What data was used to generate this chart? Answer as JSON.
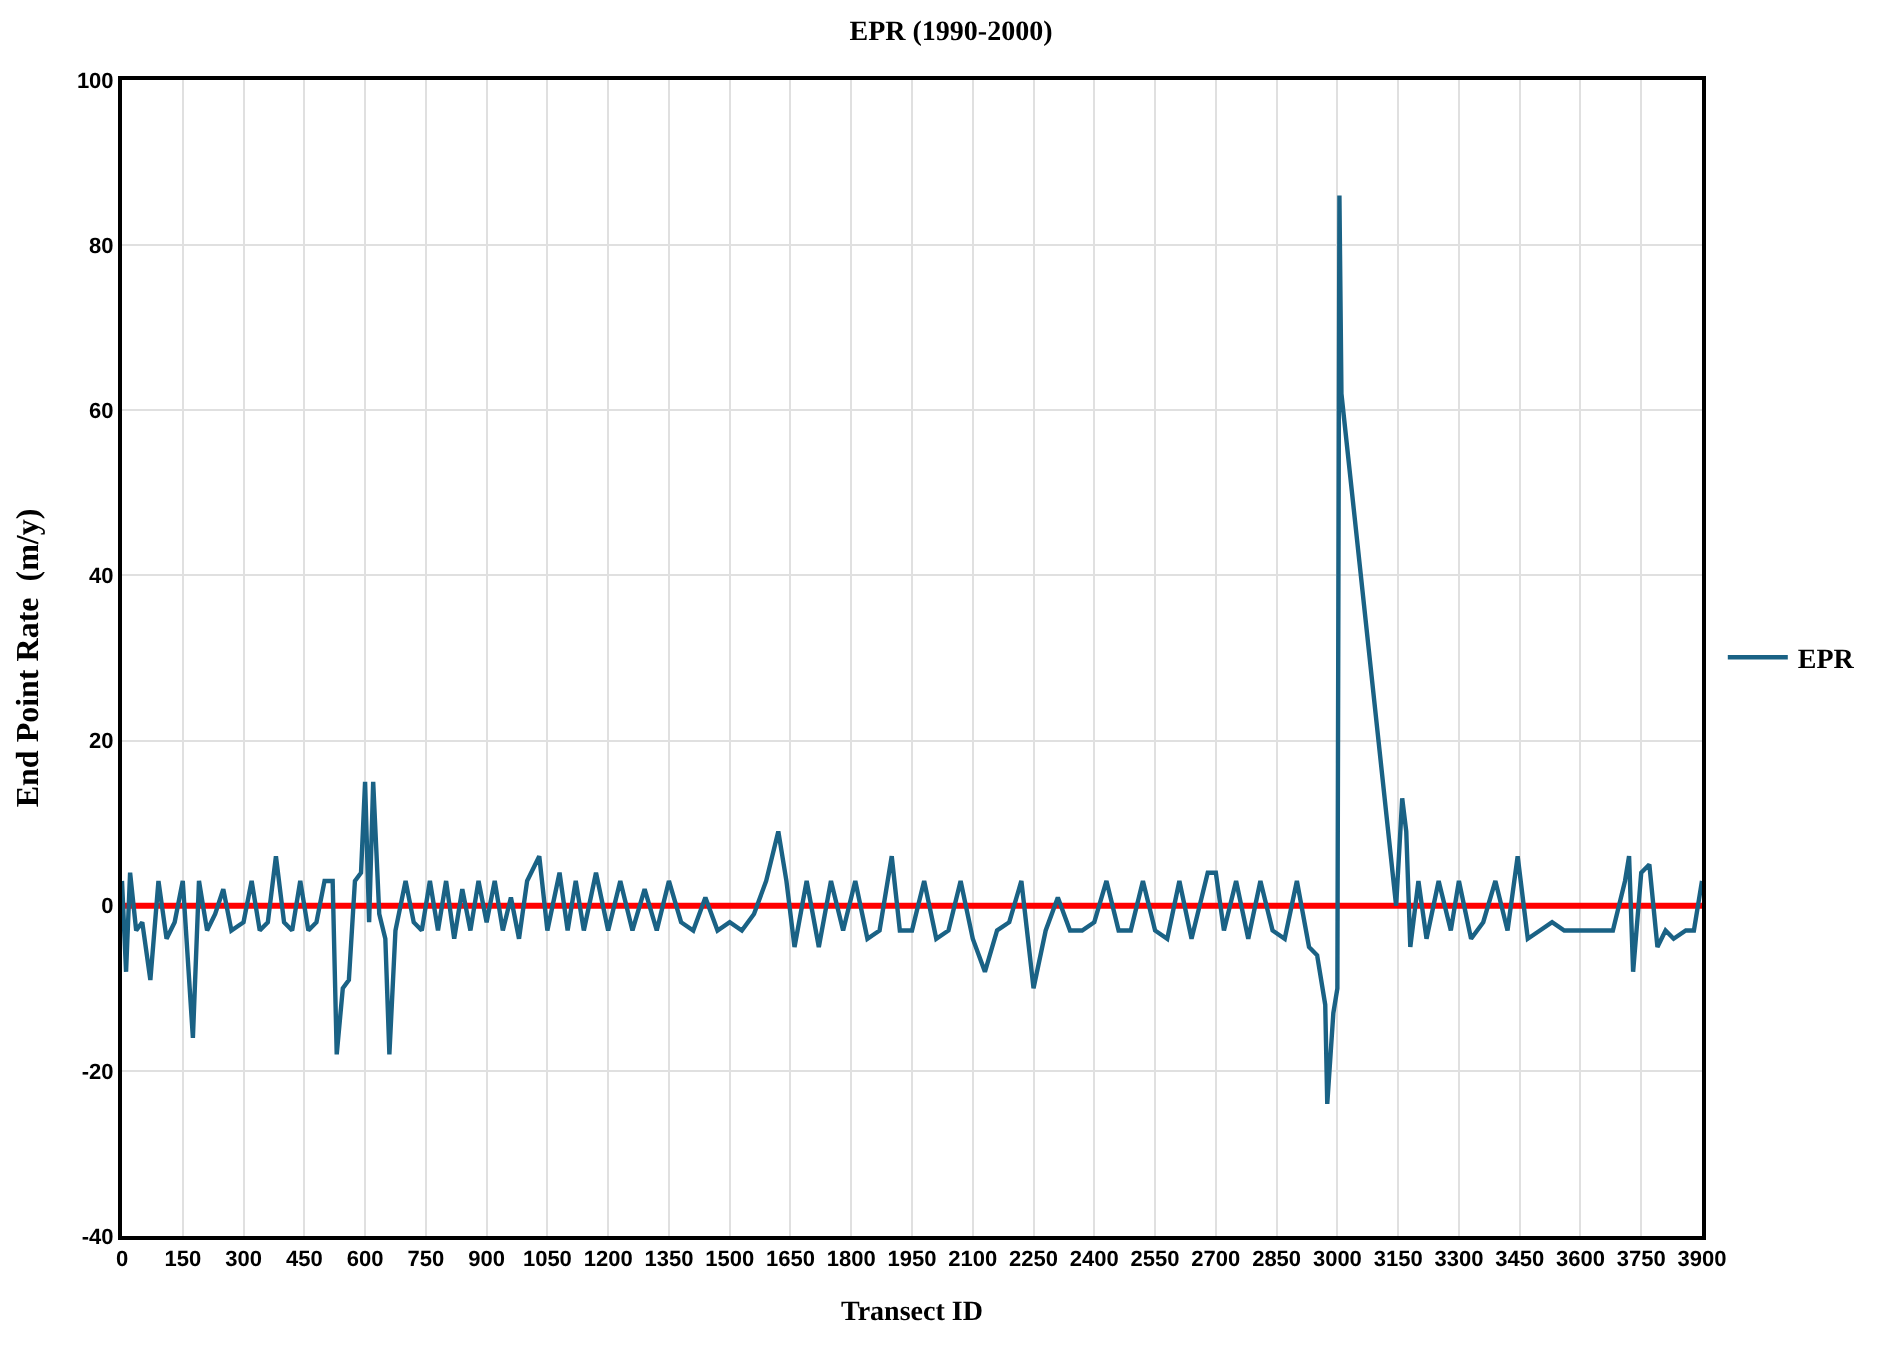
{
  "chart_data": {
    "type": "line",
    "title": "EPR (1990-2000)",
    "xlabel": "Transect ID",
    "ylabel": "End Point Rate  (m/y)",
    "series": [
      {
        "name": "EPR",
        "color": "#1a6285",
        "x": [
          0,
          10,
          20,
          35,
          50,
          70,
          90,
          110,
          130,
          150,
          175,
          190,
          210,
          230,
          250,
          270,
          300,
          320,
          340,
          360,
          380,
          400,
          420,
          440,
          460,
          480,
          500,
          520,
          530,
          545,
          560,
          575,
          590,
          600,
          610,
          620,
          635,
          650,
          660,
          675,
          700,
          720,
          740,
          760,
          780,
          800,
          820,
          840,
          860,
          880,
          900,
          920,
          940,
          960,
          980,
          1000,
          1030,
          1050,
          1080,
          1100,
          1120,
          1140,
          1170,
          1200,
          1230,
          1260,
          1290,
          1320,
          1350,
          1380,
          1410,
          1440,
          1470,
          1500,
          1530,
          1560,
          1590,
          1620,
          1640,
          1660,
          1690,
          1720,
          1750,
          1780,
          1810,
          1840,
          1870,
          1900,
          1920,
          1950,
          1980,
          2010,
          2040,
          2070,
          2100,
          2130,
          2160,
          2190,
          2220,
          2250,
          2280,
          2310,
          2340,
          2370,
          2400,
          2430,
          2460,
          2490,
          2520,
          2550,
          2580,
          2610,
          2640,
          2680,
          2700,
          2720,
          2750,
          2780,
          2810,
          2840,
          2870,
          2900,
          2930,
          2950,
          2970,
          2975,
          2990,
          3000,
          3005,
          3010,
          3145,
          3160,
          3170,
          3180,
          3200,
          3220,
          3250,
          3280,
          3300,
          3330,
          3360,
          3390,
          3420,
          3445,
          3470,
          3500,
          3530,
          3560,
          3600,
          3640,
          3680,
          3710,
          3720,
          3730,
          3750,
          3770,
          3790,
          3810,
          3830,
          3860,
          3880,
          3900
        ],
        "values": [
          3,
          -8,
          4,
          -3,
          -2,
          -9,
          3,
          -4,
          -2,
          3,
          -16,
          3,
          -3,
          -1,
          2,
          -3,
          -2,
          3,
          -3,
          -2,
          6,
          -2,
          -3,
          3,
          -3,
          -2,
          3,
          3,
          -18,
          -10,
          -9,
          3,
          4,
          15,
          -2,
          15,
          -1,
          -4,
          -18,
          -3,
          3,
          -2,
          -3,
          3,
          -3,
          3,
          -4,
          2,
          -3,
          3,
          -2,
          3,
          -3,
          1,
          -4,
          3,
          6,
          -3,
          4,
          -3,
          3,
          -3,
          4,
          -3,
          3,
          -3,
          2,
          -3,
          3,
          -2,
          -3,
          1,
          -3,
          -2,
          -3,
          -1,
          3,
          9,
          3,
          -5,
          3,
          -5,
          3,
          -3,
          3,
          -4,
          -3,
          6,
          -3,
          -3,
          3,
          -4,
          -3,
          3,
          -4,
          -8,
          -3,
          -2,
          3,
          -10,
          -3,
          1,
          -3,
          -3,
          -2,
          3,
          -3,
          -3,
          3,
          -3,
          -4,
          3,
          -4,
          4,
          4,
          -3,
          3,
          -4,
          3,
          -3,
          -4,
          3,
          -5,
          -6,
          -12,
          -24,
          -13,
          -10,
          86,
          62,
          0,
          13,
          9,
          -5,
          3,
          -4,
          3,
          -3,
          3,
          -4,
          -2,
          3,
          -3,
          6,
          -4,
          -3,
          -2,
          -3,
          -3,
          -3,
          -3,
          3,
          6,
          -8,
          4,
          5,
          -5,
          -3,
          -4,
          -3,
          -3,
          3
        ]
      }
    ],
    "xlim": [
      0,
      3900
    ],
    "xticks": [
      0,
      150,
      300,
      450,
      600,
      750,
      900,
      1050,
      1200,
      1350,
      1500,
      1650,
      1800,
      1950,
      2100,
      2250,
      2400,
      2550,
      2700,
      2850,
      3000,
      3150,
      3300,
      3450,
      3600,
      3750,
      3900
    ],
    "ylim": [
      -40,
      100
    ],
    "yticks": [
      -40,
      -20,
      0,
      20,
      40,
      60,
      80,
      100
    ],
    "ref_lines": [
      {
        "axis": "y",
        "value": 0,
        "color": "#ff0000"
      }
    ],
    "grid": true,
    "legend": "right",
    "marker": "none",
    "line_style": "solid"
  }
}
